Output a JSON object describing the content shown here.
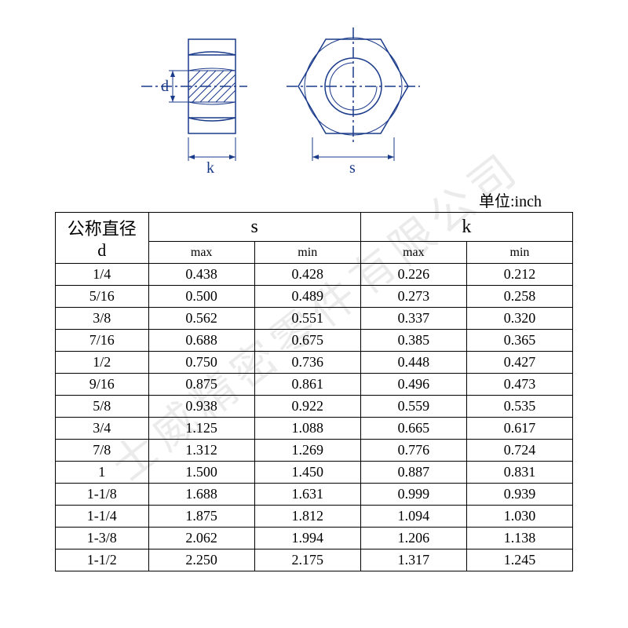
{
  "diagram": {
    "label_d": "d",
    "label_k": "k",
    "label_s": "s",
    "stroke": "#1a3a8a",
    "hatch": "#1a3a8a"
  },
  "unit_label": "单位:inch",
  "watermark_text": "士威精密零件有限公司",
  "table": {
    "header_d_line1": "公称直径",
    "header_d_line2": "d",
    "header_s": "s",
    "header_k": "k",
    "sub_max": "max",
    "sub_min": "min",
    "columns": [
      "d",
      "s_max",
      "s_min",
      "k_max",
      "k_min"
    ],
    "col_widths_pct": [
      18,
      20.5,
      20.5,
      20.5,
      20.5
    ],
    "rows": [
      [
        "1/4",
        "0.438",
        "0.428",
        "0.226",
        "0.212"
      ],
      [
        "5/16",
        "0.500",
        "0.489",
        "0.273",
        "0.258"
      ],
      [
        "3/8",
        "0.562",
        "0.551",
        "0.337",
        "0.320"
      ],
      [
        "7/16",
        "0.688",
        "0.675",
        "0.385",
        "0.365"
      ],
      [
        "1/2",
        "0.750",
        "0.736",
        "0.448",
        "0.427"
      ],
      [
        "9/16",
        "0.875",
        "0.861",
        "0.496",
        "0.473"
      ],
      [
        "5/8",
        "0.938",
        "0.922",
        "0.559",
        "0.535"
      ],
      [
        "3/4",
        "1.125",
        "1.088",
        "0.665",
        "0.617"
      ],
      [
        "7/8",
        "1.312",
        "1.269",
        "0.776",
        "0.724"
      ],
      [
        "1",
        "1.500",
        "1.450",
        "0.887",
        "0.831"
      ],
      [
        "1-1/8",
        "1.688",
        "1.631",
        "0.999",
        "0.939"
      ],
      [
        "1-1/4",
        "1.875",
        "1.812",
        "1.094",
        "1.030"
      ],
      [
        "1-3/8",
        "2.062",
        "1.994",
        "1.206",
        "1.138"
      ],
      [
        "1-1/2",
        "2.250",
        "2.175",
        "1.317",
        "1.245"
      ]
    ],
    "border_color": "#000000",
    "font_size_body": 18,
    "font_size_sub": 16
  }
}
